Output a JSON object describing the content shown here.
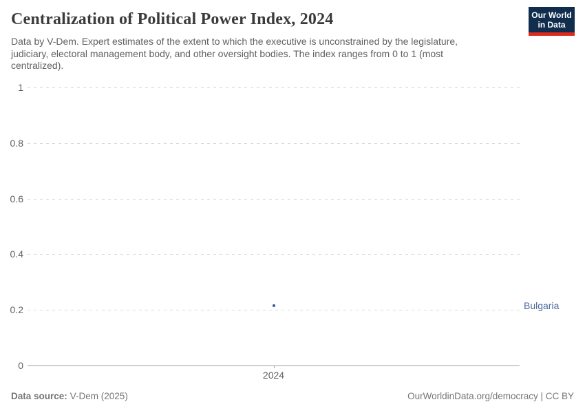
{
  "header": {
    "title": "Centralization of Political Power Index, 2024",
    "subtitle": "Data by V-Dem. Expert estimates of the extent to which the executive is unconstrained by the legislature, judiciary, electoral management body, and other oversight bodies. The index ranges from 0 to 1 (most centralized).",
    "logo": {
      "line1": "Our World",
      "line2": "in Data",
      "bg_color": "#102d4e",
      "bar_color": "#dc2a1c"
    }
  },
  "chart_data": {
    "type": "scatter",
    "title": "Centralization of Political Power Index, 2024",
    "xlabel": "",
    "ylabel": "",
    "ylim": [
      0,
      1
    ],
    "y_ticks": [
      0,
      0.2,
      0.4,
      0.6,
      0.8,
      1
    ],
    "x_ticks": [
      "2024"
    ],
    "grid": "dashed-horizontal",
    "legend_position": "right-of-point",
    "series": [
      {
        "name": "Bulgaria",
        "color": "#3d5a96",
        "label_color": "#4c6a9c",
        "points": [
          {
            "x": 2024,
            "y": 0.215
          }
        ]
      }
    ]
  },
  "footer": {
    "source_label": "Data source:",
    "source_value": "V-Dem (2025)",
    "credit": "OurWorldinData.org/democracy | CC BY"
  }
}
